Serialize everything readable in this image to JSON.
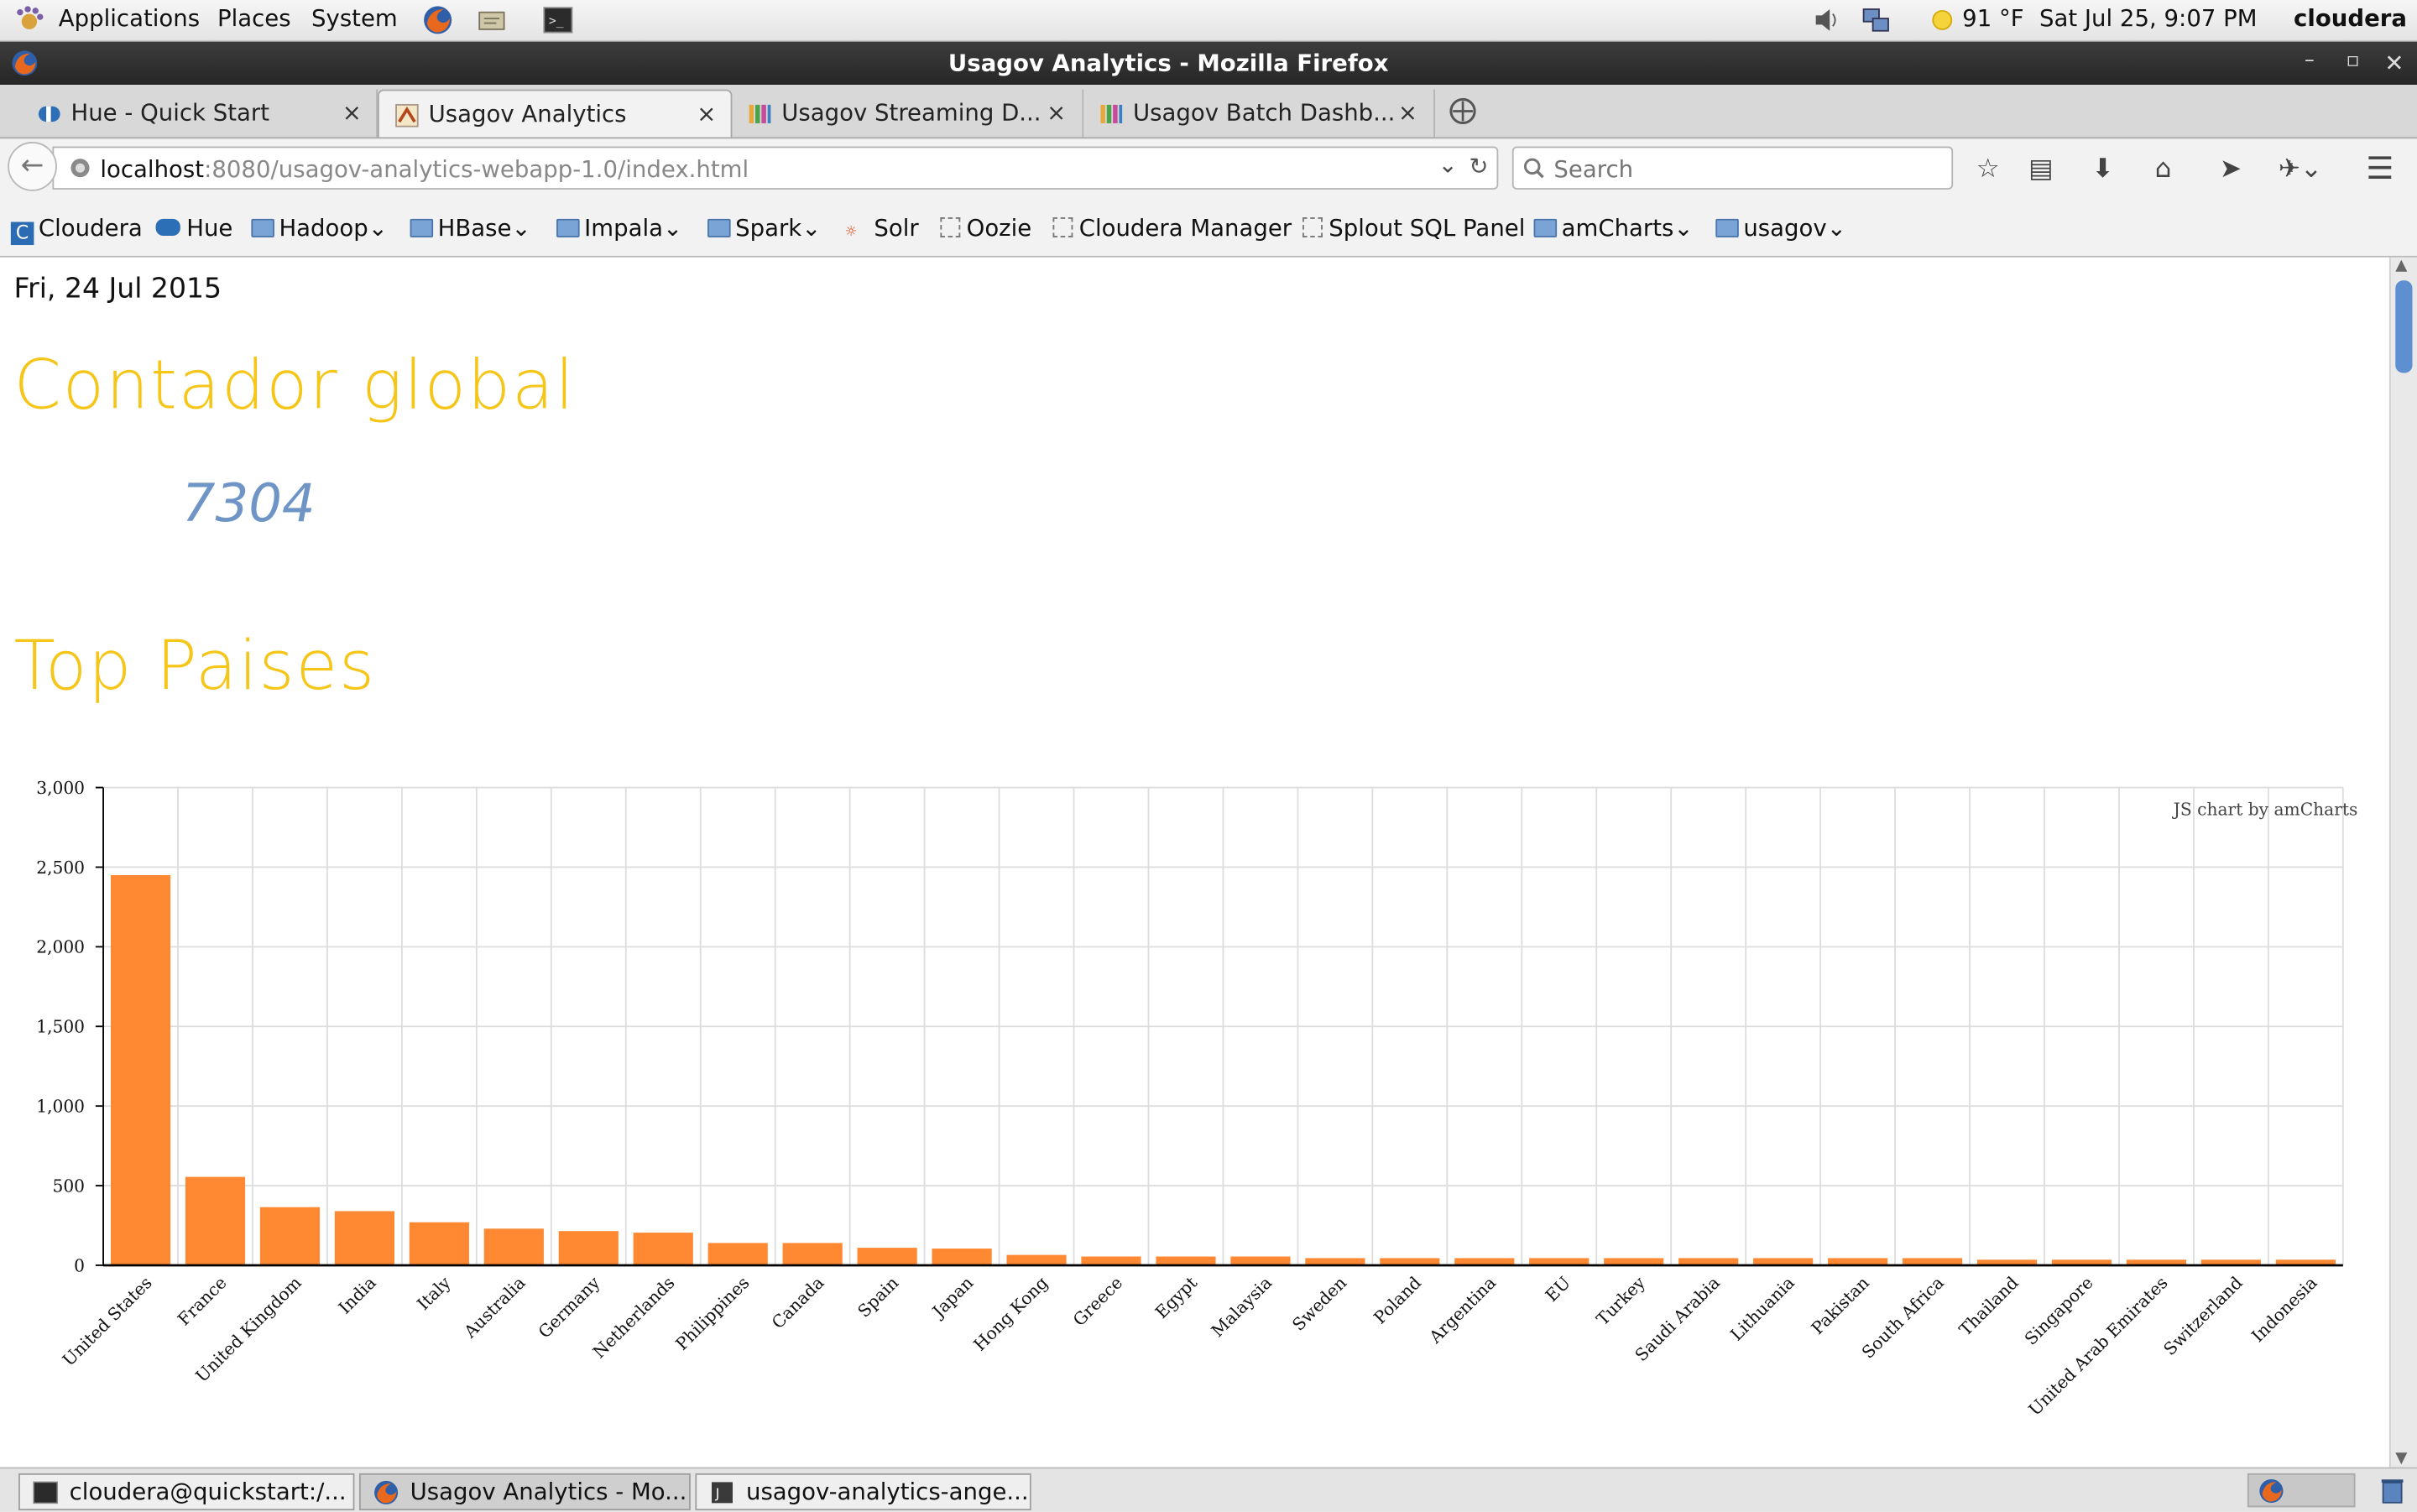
{
  "panel": {
    "applications": "Applications",
    "places": "Places",
    "system": "System",
    "weather": "91 °F",
    "datetime": "Sat Jul 25,  9:07 PM",
    "user": "cloudera"
  },
  "window": {
    "title": "Usagov Analytics - Mozilla Firefox"
  },
  "tabs": [
    {
      "label": "Hue - Quick Start",
      "close": "×"
    },
    {
      "label": "Usagov Analytics",
      "close": "×"
    },
    {
      "label": "Usagov Streaming D...",
      "close": "×"
    },
    {
      "label": "Usagov Batch Dashb...",
      "close": "×"
    }
  ],
  "nav": {
    "url_host": "localhost",
    "url_rest": ":8080/usagov-analytics-webapp-1.0/index.html",
    "search_placeholder": "Search"
  },
  "bookmarks": [
    "Cloudera",
    "Hue",
    "Hadoop",
    "HBase",
    "Impala",
    "Spark",
    "Solr",
    "Oozie",
    "Cloudera Manager",
    "Splout SQL Panel",
    "amCharts",
    "usagov"
  ],
  "page": {
    "date": "Fri, 24 Jul 2015",
    "counter_title": "Contador global",
    "counter_value": "7304",
    "top_title": "Top Paises",
    "credit": "JS chart by amCharts"
  },
  "chart_data": {
    "type": "bar",
    "title": "",
    "xlabel": "",
    "ylabel": "",
    "ylim": [
      0,
      3000
    ],
    "yticks": [
      "0",
      "500",
      "1,000",
      "1,500",
      "2,000",
      "2,500",
      "3,000"
    ],
    "bar_color": "#ff8833",
    "grid": true,
    "categories": [
      "United States",
      "France",
      "United Kingdom",
      "India",
      "Italy",
      "Australia",
      "Germany",
      "Netherlands",
      "Philippines",
      "Canada",
      "Spain",
      "Japan",
      "Hong Kong",
      "Greece",
      "Egypt",
      "Malaysia",
      "Sweden",
      "Poland",
      "Argentina",
      "EU",
      "Turkey",
      "Saudi Arabia",
      "Lithuania",
      "Pakistan",
      "South Africa",
      "Thailand",
      "Singapore",
      "United Arab Emirates",
      "Switzerland",
      "Indonesia"
    ],
    "values": [
      2450,
      555,
      365,
      340,
      270,
      230,
      215,
      205,
      140,
      140,
      110,
      105,
      65,
      55,
      55,
      55,
      45,
      45,
      45,
      45,
      45,
      45,
      45,
      45,
      45,
      35,
      35,
      35,
      35,
      35
    ]
  },
  "taskbar": [
    {
      "label": "cloudera@quickstart:/..."
    },
    {
      "label": "Usagov Analytics - Mo..."
    },
    {
      "label": "usagov-analytics-ange..."
    }
  ]
}
